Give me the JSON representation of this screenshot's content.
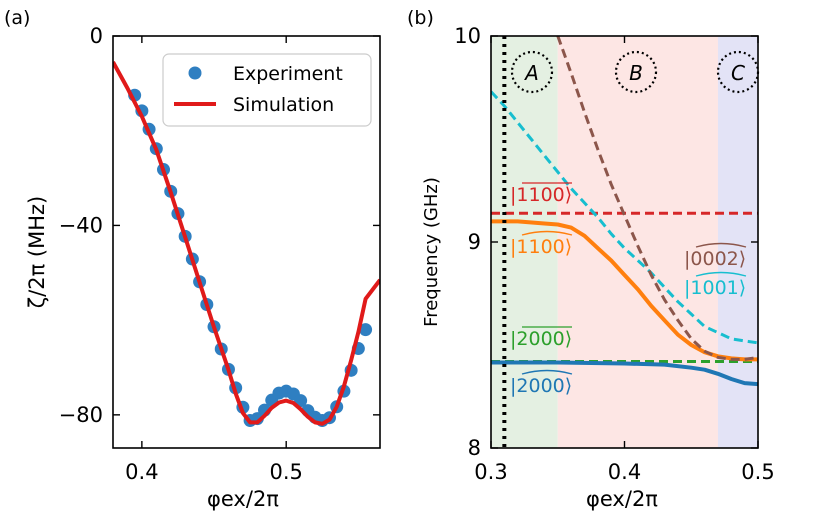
{
  "chart_data": [
    {
      "panel": "(a)",
      "type": "line",
      "xlabel": "φex/2π",
      "ylabel": "ζ/2π (MHz)",
      "xlim": [
        0.38,
        0.565
      ],
      "ylim": [
        -87,
        0
      ],
      "x_ticks": [
        0.4,
        0.5
      ],
      "x_tick_labels": [
        "0.4",
        "0.5"
      ],
      "y_ticks": [
        0,
        -40,
        -80
      ],
      "y_tick_labels": [
        "0",
        "−40",
        "−80"
      ],
      "legend": {
        "position": "top-right",
        "entries": [
          "Experiment",
          "Simulation"
        ]
      },
      "series": [
        {
          "name": "Experiment",
          "kind": "scatter",
          "color": "#2f7fc1",
          "points": [
            [
              0.395,
              -12.5
            ],
            [
              0.4,
              -15.8
            ],
            [
              0.405,
              -19.7
            ],
            [
              0.41,
              -23.8
            ],
            [
              0.415,
              -28.2
            ],
            [
              0.42,
              -32.8
            ],
            [
              0.425,
              -37.5
            ],
            [
              0.43,
              -42.3
            ],
            [
              0.435,
              -47.1
            ],
            [
              0.44,
              -51.9
            ],
            [
              0.445,
              -56.7
            ],
            [
              0.45,
              -61.4
            ],
            [
              0.455,
              -66.1
            ],
            [
              0.46,
              -70.4
            ],
            [
              0.465,
              -74.3
            ],
            [
              0.47,
              -78.4
            ],
            [
              0.475,
              -81.2
            ],
            [
              0.48,
              -80.8
            ],
            [
              0.485,
              -79.0
            ],
            [
              0.49,
              -76.9
            ],
            [
              0.495,
              -75.4
            ],
            [
              0.5,
              -75.0
            ],
            [
              0.505,
              -75.6
            ],
            [
              0.51,
              -77.0
            ],
            [
              0.515,
              -79.1
            ],
            [
              0.52,
              -80.5
            ],
            [
              0.525,
              -81.2
            ],
            [
              0.53,
              -80.6
            ],
            [
              0.535,
              -78.3
            ],
            [
              0.54,
              -75.0
            ],
            [
              0.545,
              -70.6
            ],
            [
              0.55,
              -66.0
            ],
            [
              0.555,
              -62.0
            ]
          ]
        },
        {
          "name": "Simulation",
          "kind": "line",
          "color": "#e01a1a",
          "points": [
            [
              0.38,
              -5.5
            ],
            [
              0.39,
              -11.0
            ],
            [
              0.4,
              -17.0
            ],
            [
              0.41,
              -24.0
            ],
            [
              0.42,
              -33.0
            ],
            [
              0.43,
              -42.5
            ],
            [
              0.44,
              -52.0
            ],
            [
              0.45,
              -61.5
            ],
            [
              0.46,
              -70.5
            ],
            [
              0.465,
              -75.5
            ],
            [
              0.47,
              -79.6
            ],
            [
              0.475,
              -81.6
            ],
            [
              0.48,
              -81.6
            ],
            [
              0.485,
              -80.2
            ],
            [
              0.49,
              -78.5
            ],
            [
              0.495,
              -77.4
            ],
            [
              0.5,
              -77.0
            ],
            [
              0.505,
              -77.5
            ],
            [
              0.51,
              -78.8
            ],
            [
              0.515,
              -80.4
            ],
            [
              0.52,
              -81.6
            ],
            [
              0.525,
              -81.9
            ],
            [
              0.53,
              -81.0
            ],
            [
              0.535,
              -78.3
            ],
            [
              0.54,
              -74.0
            ],
            [
              0.545,
              -68.5
            ],
            [
              0.55,
              -62.5
            ],
            [
              0.555,
              -55.5
            ],
            [
              0.565,
              -51.5
            ]
          ]
        }
      ]
    },
    {
      "panel": "(b)",
      "type": "line",
      "xlabel": "φex/2π",
      "ylabel": "Frequency (GHz)",
      "xlim": [
        0.3,
        0.5
      ],
      "ylim": [
        8,
        10
      ],
      "x_ticks": [
        0.3,
        0.4,
        0.5
      ],
      "x_tick_labels": [
        "0.3",
        "0.4",
        "0.5"
      ],
      "y_ticks": [
        8,
        9,
        10
      ],
      "y_tick_labels": [
        "8",
        "9",
        "10"
      ],
      "regions": [
        {
          "label": "A",
          "x": [
            0.3,
            0.35
          ],
          "color": "#e4f0e2"
        },
        {
          "label": "B",
          "x": [
            0.35,
            0.47
          ],
          "color": "#fde6e4"
        },
        {
          "label": "C",
          "x": [
            0.47,
            0.5
          ],
          "color": "#e3e3f6"
        }
      ],
      "vline": {
        "x": 0.31,
        "style": "dotted",
        "color": "#000000"
      },
      "series": [
        {
          "name": "|1100⟩",
          "label_text": "|1100⟩",
          "style": "dashed",
          "color": "#d62728",
          "points": [
            [
              0.3,
              9.14
            ],
            [
              0.5,
              9.14
            ]
          ]
        },
        {
          "name": "|2000⟩",
          "label_text": "|2000⟩",
          "style": "dashed",
          "color": "#2ca02c",
          "points": [
            [
              0.3,
              8.42
            ],
            [
              0.5,
              8.42
            ]
          ]
        },
        {
          "name": "|1100⟩ dressed",
          "label_text": "|1100⟩",
          "style": "solid",
          "color": "#ff7f0e",
          "points": [
            [
              0.3,
              9.1
            ],
            [
              0.32,
              9.1
            ],
            [
              0.34,
              9.09
            ],
            [
              0.35,
              9.085
            ],
            [
              0.36,
              9.07
            ],
            [
              0.37,
              9.03
            ],
            [
              0.38,
              8.97
            ],
            [
              0.39,
              8.91
            ],
            [
              0.4,
              8.84
            ],
            [
              0.41,
              8.77
            ],
            [
              0.42,
              8.69
            ],
            [
              0.43,
              8.62
            ],
            [
              0.44,
              8.55
            ],
            [
              0.45,
              8.5
            ],
            [
              0.46,
              8.465
            ],
            [
              0.47,
              8.445
            ],
            [
              0.48,
              8.435
            ],
            [
              0.49,
              8.43
            ],
            [
              0.5,
              8.43
            ]
          ]
        },
        {
          "name": "|2000⟩ dressed",
          "label_text": "|2000⟩",
          "style": "solid",
          "color": "#1f77b4",
          "points": [
            [
              0.3,
              8.415
            ],
            [
              0.35,
              8.415
            ],
            [
              0.4,
              8.41
            ],
            [
              0.43,
              8.405
            ],
            [
              0.45,
              8.39
            ],
            [
              0.46,
              8.38
            ],
            [
              0.47,
              8.36
            ],
            [
              0.48,
              8.335
            ],
            [
              0.49,
              8.315
            ],
            [
              0.5,
              8.31
            ]
          ]
        },
        {
          "name": "|1001⟩",
          "label_text": "|1001⟩",
          "style": "dashed",
          "color": "#17becf",
          "points": [
            [
              0.3,
              9.73
            ],
            [
              0.31,
              9.66
            ],
            [
              0.32,
              9.58
            ],
            [
              0.33,
              9.5
            ],
            [
              0.34,
              9.42
            ],
            [
              0.35,
              9.34
            ],
            [
              0.36,
              9.26
            ],
            [
              0.37,
              9.19
            ],
            [
              0.38,
              9.12
            ],
            [
              0.39,
              9.04
            ],
            [
              0.4,
              8.97
            ],
            [
              0.41,
              8.91
            ],
            [
              0.42,
              8.85
            ],
            [
              0.43,
              8.78
            ],
            [
              0.44,
              8.71
            ],
            [
              0.45,
              8.65
            ],
            [
              0.46,
              8.59
            ],
            [
              0.47,
              8.56
            ],
            [
              0.48,
              8.53
            ],
            [
              0.49,
              8.52
            ],
            [
              0.5,
              8.51
            ]
          ]
        },
        {
          "name": "|0002⟩",
          "label_text": "|0002⟩",
          "style": "dashed",
          "color": "#8c564b",
          "points": [
            [
              0.35,
              10.0
            ],
            [
              0.36,
              9.82
            ],
            [
              0.37,
              9.63
            ],
            [
              0.38,
              9.45
            ],
            [
              0.39,
              9.28
            ],
            [
              0.4,
              9.13
            ],
            [
              0.41,
              8.98
            ],
            [
              0.42,
              8.84
            ],
            [
              0.43,
              8.72
            ],
            [
              0.44,
              8.62
            ],
            [
              0.45,
              8.53
            ],
            [
              0.46,
              8.47
            ],
            [
              0.47,
              8.44
            ],
            [
              0.48,
              8.43
            ],
            [
              0.49,
              8.43
            ],
            [
              0.5,
              8.44
            ]
          ]
        }
      ]
    }
  ]
}
